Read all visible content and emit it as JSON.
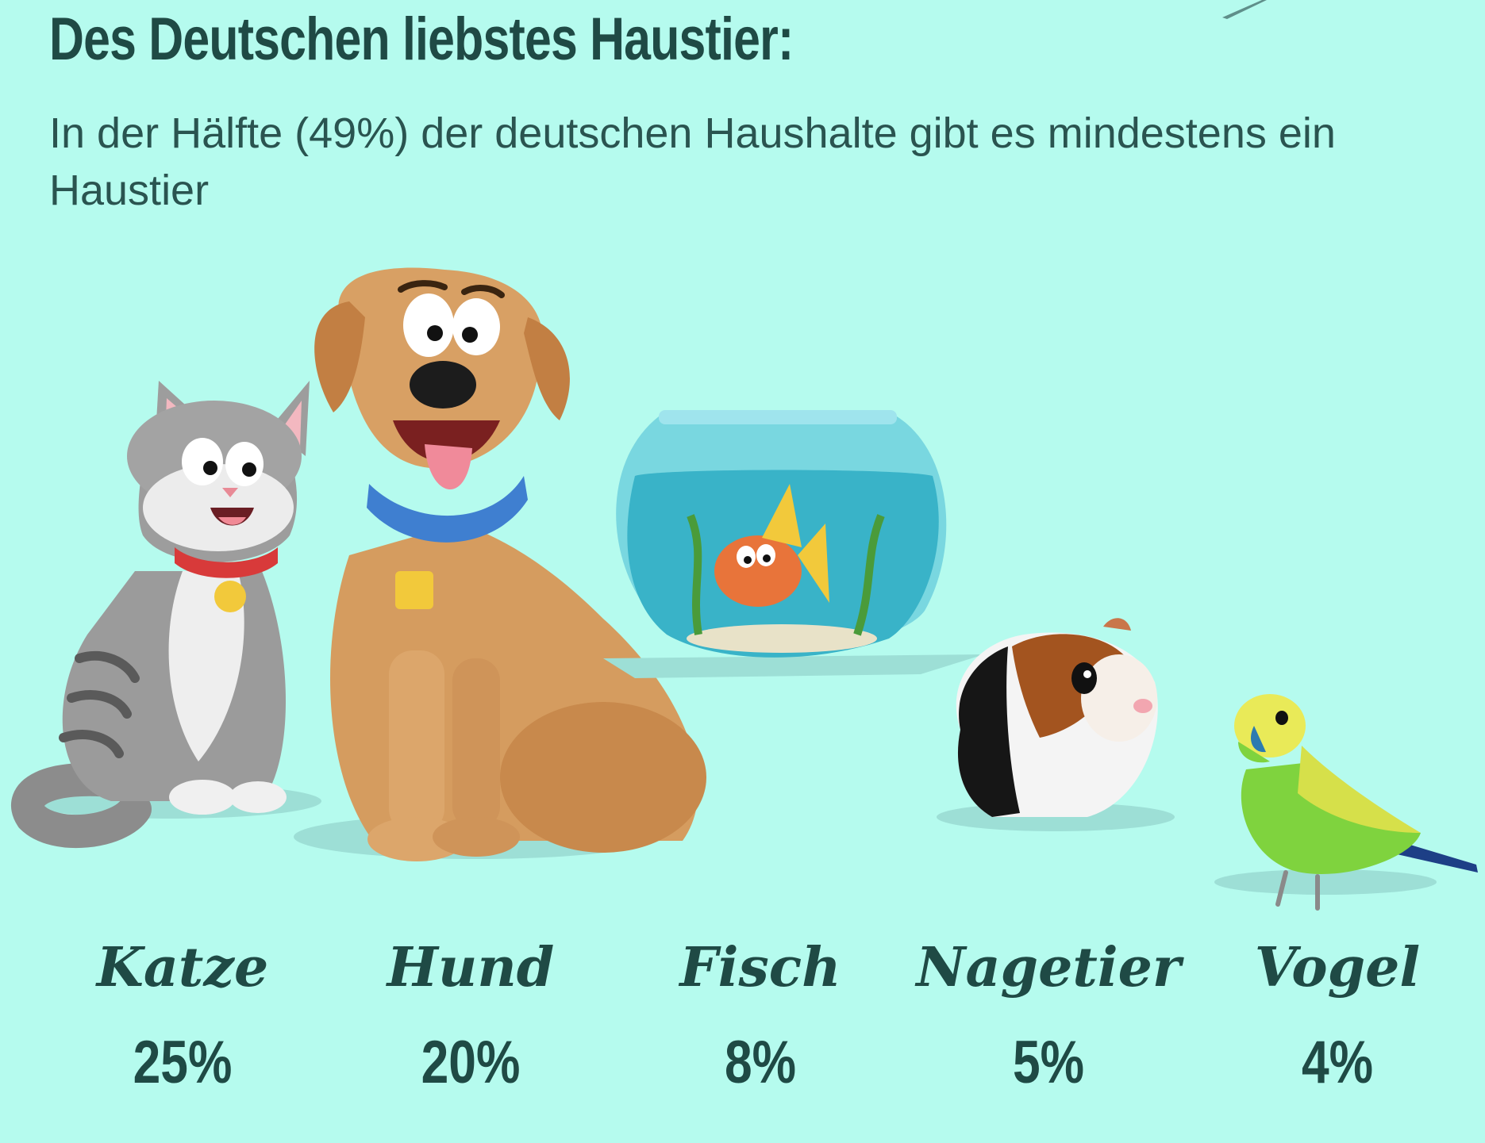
{
  "header": {
    "title": "Des Deutschen liebstes Haustier:",
    "subtitle": "In der Hälfte (49%) der deutschen Haushalte gibt es mindestens ein Haustier"
  },
  "chart_data": {
    "type": "bar",
    "title": "Des Deutschen liebstes Haustier:",
    "subtitle": "In der Hälfte (49%) der deutschen Haushalte gibt es mindestens ein Haustier",
    "categories": [
      "Katze",
      "Hund",
      "Fisch",
      "Nagetier",
      "Vogel"
    ],
    "values": [
      25,
      20,
      8,
      5,
      4
    ],
    "value_labels": [
      "25%",
      "20%",
      "8%",
      "5%",
      "4%"
    ],
    "unit": "%",
    "icons": [
      "cat-illustration",
      "dog-illustration",
      "fishbowl-illustration",
      "guinea-pig-illustration",
      "budgie-illustration"
    ],
    "colors": {
      "background": "#b5fbee",
      "text": "#1f4a45",
      "cat": "#9a9a9a",
      "dog": "#d59c5f",
      "fishbowl": "#4cc3d6",
      "fish": "#e8743a",
      "guinea_pig": "#a3541f",
      "budgie": "#7fd33e"
    }
  }
}
